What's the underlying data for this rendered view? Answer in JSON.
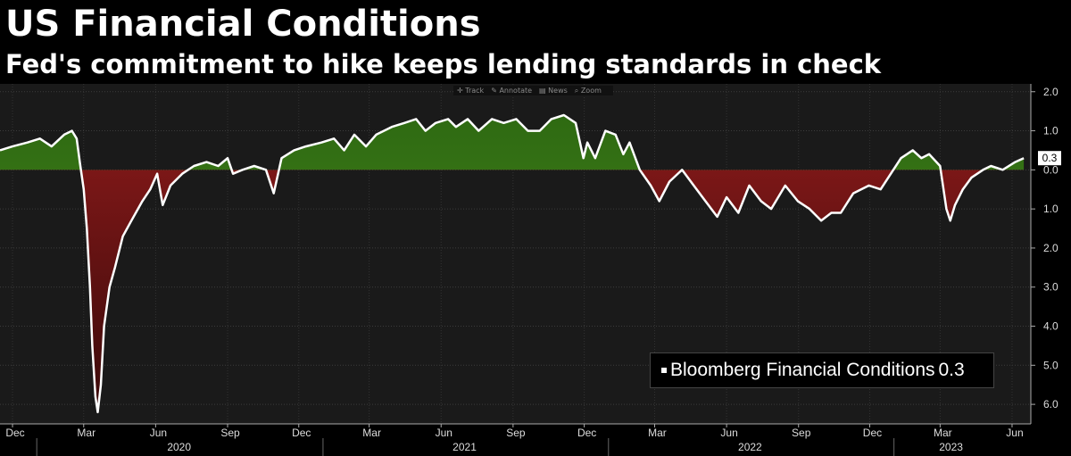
{
  "header": {
    "title": "US Financial Conditions",
    "subtitle": "Fed's commitment to hike keeps lending standards in check"
  },
  "toolbar": {
    "items": [
      {
        "icon": "crosshair-icon",
        "label": "Track"
      },
      {
        "icon": "pencil-icon",
        "label": "Annotate"
      },
      {
        "icon": "news-icon",
        "label": "News"
      },
      {
        "icon": "magnifier-icon",
        "label": "Zoom"
      }
    ]
  },
  "legend": {
    "label": "Bloomberg Financial Conditions",
    "value": "0.3"
  },
  "colors": {
    "background": "#1a1a1a",
    "positive_fill": "#4e8c1e",
    "negative_fill": "#8a1a1a",
    "line": "#ffffff"
  },
  "chart_data": {
    "type": "area",
    "title": "US Financial Conditions",
    "subtitle": "Fed's commitment to hike keeps lending standards in check",
    "series": [
      {
        "name": "Bloomberg Financial Conditions",
        "last_value": 0.3,
        "points": [
          [
            "2019-11-15",
            0.5
          ],
          [
            "2019-12-01",
            0.6
          ],
          [
            "2019-12-20",
            0.7
          ],
          [
            "2020-01-05",
            0.8
          ],
          [
            "2020-01-20",
            0.6
          ],
          [
            "2020-02-05",
            0.9
          ],
          [
            "2020-02-15",
            1.0
          ],
          [
            "2020-02-21",
            0.8
          ],
          [
            "2020-02-25",
            0.2
          ],
          [
            "2020-03-01",
            -0.5
          ],
          [
            "2020-03-05",
            -1.5
          ],
          [
            "2020-03-09",
            -3.0
          ],
          [
            "2020-03-12",
            -4.5
          ],
          [
            "2020-03-16",
            -5.8
          ],
          [
            "2020-03-19",
            -6.2
          ],
          [
            "2020-03-23",
            -5.5
          ],
          [
            "2020-03-27",
            -4.0
          ],
          [
            "2020-04-03",
            -3.0
          ],
          [
            "2020-04-10",
            -2.5
          ],
          [
            "2020-04-20",
            -1.7
          ],
          [
            "2020-05-01",
            -1.3
          ],
          [
            "2020-05-15",
            -0.8
          ],
          [
            "2020-05-25",
            -0.5
          ],
          [
            "2020-06-03",
            -0.1
          ],
          [
            "2020-06-10",
            -0.9
          ],
          [
            "2020-06-20",
            -0.4
          ],
          [
            "2020-07-05",
            -0.1
          ],
          [
            "2020-07-20",
            0.1
          ],
          [
            "2020-08-05",
            0.2
          ],
          [
            "2020-08-20",
            0.1
          ],
          [
            "2020-09-01",
            0.3
          ],
          [
            "2020-09-08",
            -0.1
          ],
          [
            "2020-09-20",
            0.0
          ],
          [
            "2020-10-05",
            0.1
          ],
          [
            "2020-10-20",
            0.0
          ],
          [
            "2020-10-30",
            -0.6
          ],
          [
            "2020-11-09",
            0.3
          ],
          [
            "2020-11-25",
            0.5
          ],
          [
            "2020-12-10",
            0.6
          ],
          [
            "2020-12-30",
            0.7
          ],
          [
            "2021-01-15",
            0.8
          ],
          [
            "2021-01-28",
            0.5
          ],
          [
            "2021-02-10",
            0.9
          ],
          [
            "2021-02-25",
            0.6
          ],
          [
            "2021-03-10",
            0.9
          ],
          [
            "2021-03-30",
            1.1
          ],
          [
            "2021-04-15",
            1.2
          ],
          [
            "2021-04-30",
            1.3
          ],
          [
            "2021-05-12",
            1.0
          ],
          [
            "2021-05-25",
            1.2
          ],
          [
            "2021-06-10",
            1.3
          ],
          [
            "2021-06-20",
            1.1
          ],
          [
            "2021-07-05",
            1.3
          ],
          [
            "2021-07-19",
            1.0
          ],
          [
            "2021-08-05",
            1.3
          ],
          [
            "2021-08-20",
            1.2
          ],
          [
            "2021-09-05",
            1.3
          ],
          [
            "2021-09-20",
            1.0
          ],
          [
            "2021-10-05",
            1.0
          ],
          [
            "2021-10-20",
            1.3
          ],
          [
            "2021-11-05",
            1.4
          ],
          [
            "2021-11-20",
            1.2
          ],
          [
            "2021-11-30",
            0.3
          ],
          [
            "2021-12-05",
            0.7
          ],
          [
            "2021-12-15",
            0.3
          ],
          [
            "2021-12-28",
            1.0
          ],
          [
            "2022-01-10",
            0.9
          ],
          [
            "2022-01-20",
            0.4
          ],
          [
            "2022-01-28",
            0.7
          ],
          [
            "2022-02-10",
            0.0
          ],
          [
            "2022-02-24",
            -0.4
          ],
          [
            "2022-03-07",
            -0.8
          ],
          [
            "2022-03-20",
            -0.3
          ],
          [
            "2022-04-05",
            0.0
          ],
          [
            "2022-04-20",
            -0.4
          ],
          [
            "2022-05-05",
            -0.8
          ],
          [
            "2022-05-20",
            -1.2
          ],
          [
            "2022-06-01",
            -0.7
          ],
          [
            "2022-06-16",
            -1.1
          ],
          [
            "2022-06-30",
            -0.4
          ],
          [
            "2022-07-15",
            -0.8
          ],
          [
            "2022-07-28",
            -1.0
          ],
          [
            "2022-08-15",
            -0.4
          ],
          [
            "2022-08-31",
            -0.8
          ],
          [
            "2022-09-15",
            -1.0
          ],
          [
            "2022-09-30",
            -1.3
          ],
          [
            "2022-10-13",
            -1.1
          ],
          [
            "2022-10-25",
            -1.1
          ],
          [
            "2022-11-10",
            -0.6
          ],
          [
            "2022-11-30",
            -0.4
          ],
          [
            "2022-12-15",
            -0.5
          ],
          [
            "2022-12-28",
            -0.1
          ],
          [
            "2023-01-10",
            0.3
          ],
          [
            "2023-01-25",
            0.5
          ],
          [
            "2023-02-05",
            0.3
          ],
          [
            "2023-02-15",
            0.4
          ],
          [
            "2023-03-01",
            0.1
          ],
          [
            "2023-03-09",
            -1.0
          ],
          [
            "2023-03-14",
            -1.3
          ],
          [
            "2023-03-20",
            -0.9
          ],
          [
            "2023-03-30",
            -0.5
          ],
          [
            "2023-04-10",
            -0.2
          ],
          [
            "2023-04-25",
            0.0
          ],
          [
            "2023-05-05",
            0.1
          ],
          [
            "2023-05-20",
            0.0
          ],
          [
            "2023-06-05",
            0.2
          ],
          [
            "2023-06-16",
            0.3
          ]
        ]
      }
    ],
    "x_ticks": [
      "Dec",
      "Mar",
      "Jun",
      "Sep",
      "Dec",
      "Mar",
      "Jun",
      "Sep",
      "Dec",
      "Mar",
      "Jun",
      "Sep",
      "Dec",
      "Mar",
      "Jun"
    ],
    "x_tick_dates": [
      "2019-12-01",
      "2020-03-01",
      "2020-06-01",
      "2020-09-01",
      "2020-12-01",
      "2021-03-01",
      "2021-06-01",
      "2021-09-01",
      "2021-12-01",
      "2022-03-01",
      "2022-06-01",
      "2022-09-01",
      "2022-12-01",
      "2023-03-01",
      "2023-06-01"
    ],
    "years": [
      {
        "label": "2020",
        "date": "2020-07-01"
      },
      {
        "label": "2021",
        "date": "2021-07-01"
      },
      {
        "label": "2022",
        "date": "2022-07-01"
      },
      {
        "label": "2023",
        "date": "2023-03-15"
      }
    ],
    "year_boundaries": [
      "2020-01-01",
      "2021-01-01",
      "2022-01-01",
      "2023-01-01"
    ],
    "xlim": [
      "2019-11-15",
      "2023-06-25"
    ],
    "ylim": [
      -6.5,
      2.2
    ],
    "y_ticks": [
      2.0,
      1.0,
      0.0,
      -1.0,
      -2.0,
      -3.0,
      -4.0,
      -5.0,
      -6.0
    ],
    "y_tick_labels": [
      "2.0",
      "1.0",
      "0.0",
      "1.0",
      "2.0",
      "3.0",
      "4.0",
      "5.0",
      "6.0"
    ],
    "grid": true,
    "legend_position": "bottom-right"
  }
}
